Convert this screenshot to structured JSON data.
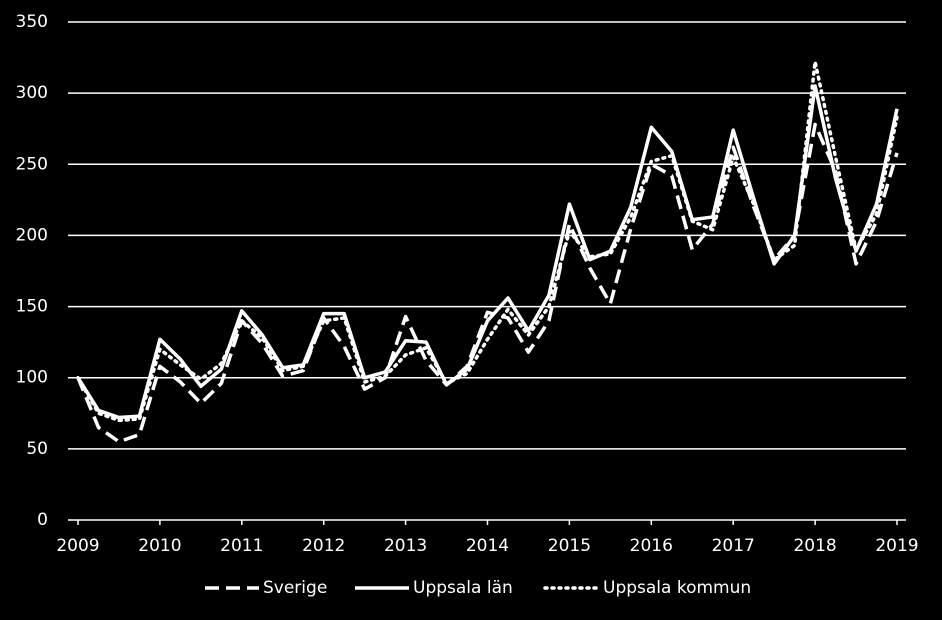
{
  "chart_data": {
    "type": "line",
    "x": [
      2009,
      2009.25,
      2009.5,
      2009.75,
      2010,
      2010.25,
      2010.5,
      2010.75,
      2011,
      2011.25,
      2011.5,
      2011.75,
      2012,
      2012.25,
      2012.5,
      2012.75,
      2013,
      2013.25,
      2013.5,
      2013.75,
      2014,
      2014.25,
      2014.5,
      2014.75,
      2015,
      2015.25,
      2015.5,
      2015.75,
      2016,
      2016.25,
      2016.5,
      2016.75,
      2017,
      2017.25,
      2017.5,
      2017.75,
      2018,
      2018.25,
      2018.5,
      2018.75,
      2019
    ],
    "series": [
      {
        "name": "Sverige",
        "color": "#ffffff",
        "dash": "dashed",
        "values": [
          100,
          65,
          55,
          60,
          108,
          97,
          82,
          96,
          140,
          124,
          101,
          105,
          142,
          122,
          92,
          100,
          143,
          112,
          95,
          108,
          146,
          142,
          118,
          140,
          208,
          177,
          152,
          205,
          250,
          242,
          190,
          208,
          262,
          220,
          183,
          200,
          278,
          245,
          180,
          210,
          258
        ]
      },
      {
        "name": "Uppsala län",
        "color": "#ffffff",
        "dash": "solid",
        "values": [
          100,
          77,
          72,
          73,
          127,
          113,
          94,
          106,
          147,
          130,
          107,
          109,
          145,
          145,
          100,
          104,
          126,
          125,
          95,
          106,
          140,
          156,
          133,
          158,
          222,
          183,
          189,
          220,
          276,
          259,
          211,
          213,
          274,
          226,
          180,
          200,
          305,
          240,
          189,
          222,
          289
        ]
      },
      {
        "name": "Uppsala kommun",
        "color": "#ffffff",
        "dash": "dotted",
        "values": [
          100,
          75,
          70,
          71,
          120,
          109,
          99,
          110,
          140,
          128,
          105,
          108,
          140,
          142,
          97,
          101,
          116,
          121,
          96,
          103,
          127,
          148,
          130,
          150,
          203,
          185,
          187,
          213,
          252,
          256,
          210,
          204,
          255,
          222,
          183,
          193,
          322,
          255,
          190,
          215,
          283
        ]
      }
    ],
    "xlim": [
      2009,
      2019
    ],
    "xticks": [
      2009,
      2010,
      2011,
      2012,
      2013,
      2014,
      2015,
      2016,
      2017,
      2018,
      2019
    ],
    "ylim": [
      0,
      350
    ],
    "yticks": [
      0,
      50,
      100,
      150,
      200,
      250,
      300,
      350
    ],
    "grid": true,
    "legend": "bottom"
  }
}
